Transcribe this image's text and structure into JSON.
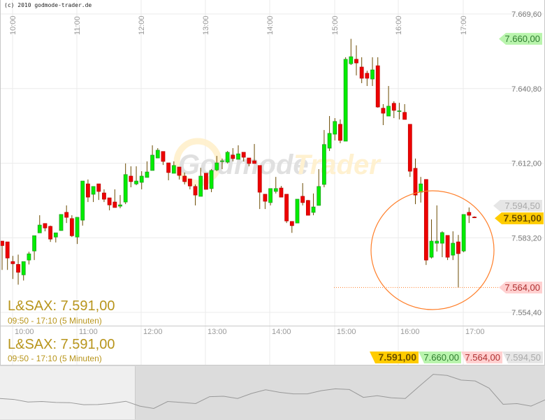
{
  "copyright": "(c) 2010 godmode-trader.de",
  "watermark": "GodmodeTrader",
  "title": "L&SAX: 7.591,00",
  "subtitle": "09:50 - 17:10 (5 Minuten)",
  "time_labels": [
    "10:00",
    "11:00",
    "12:00",
    "13:00",
    "14:00",
    "15:00",
    "16:00",
    "17:00"
  ],
  "price_ticks": [
    {
      "value": 7669.6,
      "label": "7.669,60"
    },
    {
      "value": 7640.8,
      "label": "7.640,80"
    },
    {
      "value": 7612.0,
      "label": "7.612,00"
    },
    {
      "value": 7583.2,
      "label": "7.583,20"
    },
    {
      "value": 7554.4,
      "label": "7.554,40"
    }
  ],
  "tags": {
    "last": {
      "value": 7591.0,
      "label": "7.591,00",
      "color": "#ffcc00"
    },
    "high": {
      "value": 7660.0,
      "label": "7.660,00",
      "color": "#b9f4ad"
    },
    "low": {
      "value": 7564.0,
      "label": "7.564,00",
      "color": "#ffd0d0"
    },
    "previous": {
      "value": 7594.5,
      "label": "7.594,50",
      "color": "#e6e6e6"
    }
  },
  "colors": {
    "up": "#00ee00",
    "down": "#ee0000",
    "wick": "#6b4a00",
    "annotation": "#ff7f2a",
    "text_gold": "#b8951c"
  },
  "chart_data": {
    "type": "candlestick",
    "interval": "5 Minuten",
    "x_start": "09:50",
    "x_end": "17:10",
    "ylim": [
      7554.4,
      7669.6
    ],
    "grid": true,
    "ohlc": [
      [
        7581.9,
        7581.9,
        7570.8,
        7580.2
      ],
      [
        7581.6,
        7581.6,
        7570.8,
        7575.4
      ],
      [
        7574.0,
        7576.2,
        7567.3,
        7573.2
      ],
      [
        7572.9,
        7576.7,
        7565.1,
        7569.9
      ],
      [
        7568.9,
        7574.0,
        7566.7,
        7574.0
      ],
      [
        7574.6,
        7577.8,
        7572.9,
        7577.0
      ],
      [
        7578.1,
        7584.0,
        7574.6,
        7584.0
      ],
      [
        7585.1,
        7591.9,
        7585.1,
        7588.1
      ],
      [
        7588.7,
        7588.7,
        7585.7,
        7587.0
      ],
      [
        7587.6,
        7587.9,
        7581.6,
        7582.7
      ],
      [
        7583.5,
        7585.1,
        7581.4,
        7585.1
      ],
      [
        7586.0,
        7592.2,
        7586.0,
        7592.2
      ],
      [
        7593.0,
        7595.7,
        7588.9,
        7591.1
      ],
      [
        7590.6,
        7591.9,
        7583.5,
        7584.0
      ],
      [
        7583.5,
        7591.1,
        7580.8,
        7591.1
      ],
      [
        7590.0,
        7605.1,
        7587.9,
        7605.1
      ],
      [
        7604.0,
        7605.7,
        7597.0,
        7598.9
      ],
      [
        7600.0,
        7603.0,
        7597.0,
        7603.0
      ],
      [
        7604.0,
        7604.0,
        7597.8,
        7601.1
      ],
      [
        7600.5,
        7601.9,
        7597.0,
        7598.1
      ],
      [
        7598.6,
        7598.6,
        7593.8,
        7595.9
      ],
      [
        7597.0,
        7601.9,
        7594.9,
        7594.9
      ],
      [
        7595.4,
        7599.7,
        7594.6,
        7595.9
      ],
      [
        7597.0,
        7611.9,
        7596.2,
        7607.6
      ],
      [
        7607.0,
        7610.8,
        7602.7,
        7604.9
      ],
      [
        7604.0,
        7610.8,
        7603.5,
        7605.1
      ],
      [
        7604.6,
        7608.9,
        7601.9,
        7607.0
      ],
      [
        7606.5,
        7612.7,
        7606.5,
        7608.6
      ],
      [
        7609.2,
        7618.9,
        7609.2,
        7615.1
      ],
      [
        7614.0,
        7617.8,
        7614.0,
        7617.0
      ],
      [
        7616.5,
        7616.5,
        7611.3,
        7612.7
      ],
      [
        7612.1,
        7612.1,
        7605.4,
        7608.4
      ],
      [
        7608.1,
        7612.7,
        7608.1,
        7611.1
      ],
      [
        7610.5,
        7610.5,
        7605.7,
        7607.3
      ],
      [
        7607.0,
        7608.4,
        7603.8,
        7604.9
      ],
      [
        7605.9,
        7605.9,
        7601.9,
        7603.2
      ],
      [
        7603.0,
        7603.8,
        7595.7,
        7599.7
      ],
      [
        7599.2,
        7610.2,
        7599.2,
        7607.0
      ],
      [
        7608.1,
        7608.1,
        7601.9,
        7601.9
      ],
      [
        7602.2,
        7609.7,
        7600.8,
        7609.2
      ],
      [
        7609.4,
        7614.8,
        7608.9,
        7612.1
      ],
      [
        7612.7,
        7613.8,
        7609.7,
        7612.9
      ],
      [
        7612.4,
        7616.7,
        7611.9,
        7616.2
      ],
      [
        7615.1,
        7617.8,
        7612.7,
        7613.8
      ],
      [
        7613.5,
        7618.9,
        7613.5,
        7615.6
      ],
      [
        7616.2,
        7616.2,
        7612.7,
        7614.3
      ],
      [
        7614.0,
        7614.0,
        7610.8,
        7611.9
      ],
      [
        7612.9,
        7619.4,
        7611.9,
        7611.9
      ],
      [
        7611.1,
        7611.1,
        7594.3,
        7600.8
      ],
      [
        7600.0,
        7600.0,
        7594.3,
        7597.3
      ],
      [
        7596.8,
        7602.2,
        7595.7,
        7602.2
      ],
      [
        7601.1,
        7606.7,
        7600.3,
        7602.2
      ],
      [
        7602.4,
        7603.2,
        7598.9,
        7598.9
      ],
      [
        7600.0,
        7600.0,
        7588.9,
        7589.7
      ],
      [
        7589.5,
        7589.5,
        7585.1,
        7587.9
      ],
      [
        7588.9,
        7598.1,
        7588.9,
        7598.1
      ],
      [
        7599.2,
        7604.3,
        7595.7,
        7596.8
      ],
      [
        7597.6,
        7597.8,
        7591.9,
        7591.9
      ],
      [
        7593.0,
        7600.3,
        7591.9,
        7595.1
      ],
      [
        7595.7,
        7609.7,
        7595.7,
        7603.0
      ],
      [
        7603.8,
        7624.8,
        7602.7,
        7619.2
      ],
      [
        7617.8,
        7630.2,
        7616.7,
        7623.5
      ],
      [
        7623.2,
        7629.4,
        7620.8,
        7628.1
      ],
      [
        7627.0,
        7628.9,
        7619.7,
        7620.8
      ],
      [
        7620.5,
        7652.9,
        7620.5,
        7652.1
      ],
      [
        7650.4,
        7660.0,
        7649.9,
        7653.1
      ],
      [
        7652.1,
        7657.5,
        7645.9,
        7650.7
      ],
      [
        7649.1,
        7652.9,
        7642.9,
        7644.8
      ],
      [
        7646.7,
        7647.7,
        7641.8,
        7644.8
      ],
      [
        7644.5,
        7652.9,
        7641.8,
        7648.0
      ],
      [
        7649.6,
        7652.9,
        7633.4,
        7633.7
      ],
      [
        7633.2,
        7634.8,
        7626.7,
        7631.3
      ],
      [
        7630.2,
        7641.8,
        7630.2,
        7634.0
      ],
      [
        7635.1,
        7635.9,
        7629.4,
        7632.4
      ],
      [
        7632.0,
        7635.3,
        7628.9,
        7632.2
      ],
      [
        7631.6,
        7634.8,
        7628.9,
        7628.9
      ],
      [
        7627.0,
        7627.0,
        7606.7,
        7608.9
      ],
      [
        7610.0,
        7613.8,
        7596.2,
        7599.7
      ],
      [
        7600.8,
        7606.7,
        7596.8,
        7604.0
      ],
      [
        7605.7,
        7605.7,
        7572.7,
        7574.6
      ],
      [
        7575.7,
        7590.3,
        7575.2,
        7581.9
      ],
      [
        7581.1,
        7595.7,
        7577.9,
        7581.9
      ],
      [
        7581.1,
        7585.7,
        7575.7,
        7585.2
      ],
      [
        7584.1,
        7584.1,
        7574.6,
        7575.7
      ],
      [
        7576.5,
        7585.7,
        7574.6,
        7581.1
      ],
      [
        7581.6,
        7584.3,
        7564.0,
        7577.1
      ],
      [
        7578.1,
        7592.2,
        7577.6,
        7592.2
      ],
      [
        7593.0,
        7594.9,
        7588.9,
        7591.9
      ],
      [
        7591.2,
        7591.5,
        7590.8,
        7591.0
      ]
    ],
    "overview_values": [
      75,
      71,
      60,
      62,
      58,
      57,
      48,
      49,
      54,
      63,
      42,
      32,
      62,
      58,
      53,
      83,
      85,
      75,
      97,
      113,
      102,
      95,
      95,
      109,
      117,
      114,
      80,
      87,
      78,
      75,
      128,
      180,
      175,
      155,
      151,
      120,
      50,
      53,
      42,
      69
    ]
  }
}
